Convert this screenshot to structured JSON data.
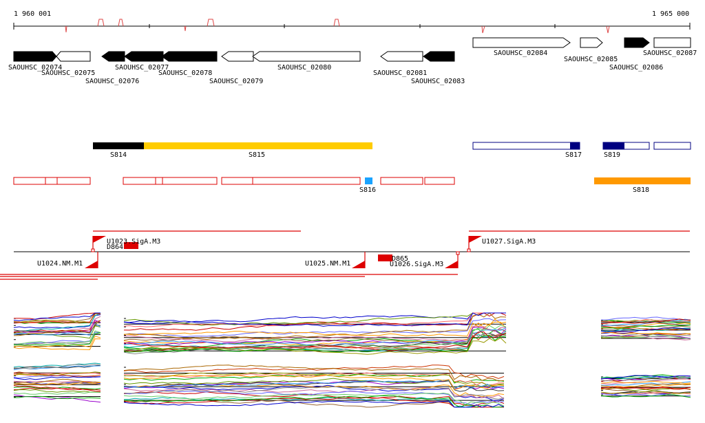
{
  "ruler": {
    "start_label": "1 960 001",
    "end_label": "1 965 000"
  },
  "genes": [
    {
      "id": "g74",
      "label": "SAOUHSC_02074",
      "fill": "black"
    },
    {
      "id": "g75",
      "label": "SAOUHSC_02075",
      "fill": "white"
    },
    {
      "id": "g76",
      "label": "SAOUHSC_02076",
      "fill": "black"
    },
    {
      "id": "g77",
      "label": "SAOUHSC_02077",
      "fill": "black"
    },
    {
      "id": "g78",
      "label": "SAOUHSC_02078",
      "fill": "black"
    },
    {
      "id": "g79",
      "label": "SAOUHSC_02079",
      "fill": "white"
    },
    {
      "id": "g80",
      "label": "SAOUHSC_02080",
      "fill": "white"
    },
    {
      "id": "g81",
      "label": "SAOUHSC_02081",
      "fill": "white"
    },
    {
      "id": "g83",
      "label": "SAOUHSC_02083",
      "fill": "black"
    },
    {
      "id": "g84",
      "label": "SAOUHSC_02084",
      "fill": "white"
    },
    {
      "id": "g85",
      "label": "SAOUHSC_02085",
      "fill": "white"
    },
    {
      "id": "g86",
      "label": "SAOUHSC_02086",
      "fill": "black"
    },
    {
      "id": "g87",
      "label": "SAOUHSC_02087",
      "fill": "white"
    }
  ],
  "segments": [
    {
      "id": "s814",
      "label": "S814",
      "color": "#000000"
    },
    {
      "id": "s815",
      "label": "S815",
      "color": "#ffcc00"
    },
    {
      "id": "s816",
      "label": "S816",
      "color": "#1aa3ff"
    },
    {
      "id": "s817",
      "label": "S817",
      "color": "#000080"
    },
    {
      "id": "s818",
      "label": "S818",
      "color": "#ff9900"
    },
    {
      "id": "s819",
      "label": "S819",
      "color": "#000080"
    }
  ],
  "features": [
    {
      "id": "u1023",
      "label": "U1023.SigA.M3"
    },
    {
      "id": "d864",
      "label": "D864"
    },
    {
      "id": "u1024",
      "label": "U1024.NM.M1"
    },
    {
      "id": "u1025",
      "label": "U1025.NM.M1"
    },
    {
      "id": "d865",
      "label": "D865"
    },
    {
      "id": "u1026",
      "label": "U1026.SigA.M3"
    },
    {
      "id": "u1027",
      "label": "U1027.SigA.M3"
    }
  ],
  "colors": {
    "annotation_red": "#dd0000",
    "axis": "#000000"
  }
}
